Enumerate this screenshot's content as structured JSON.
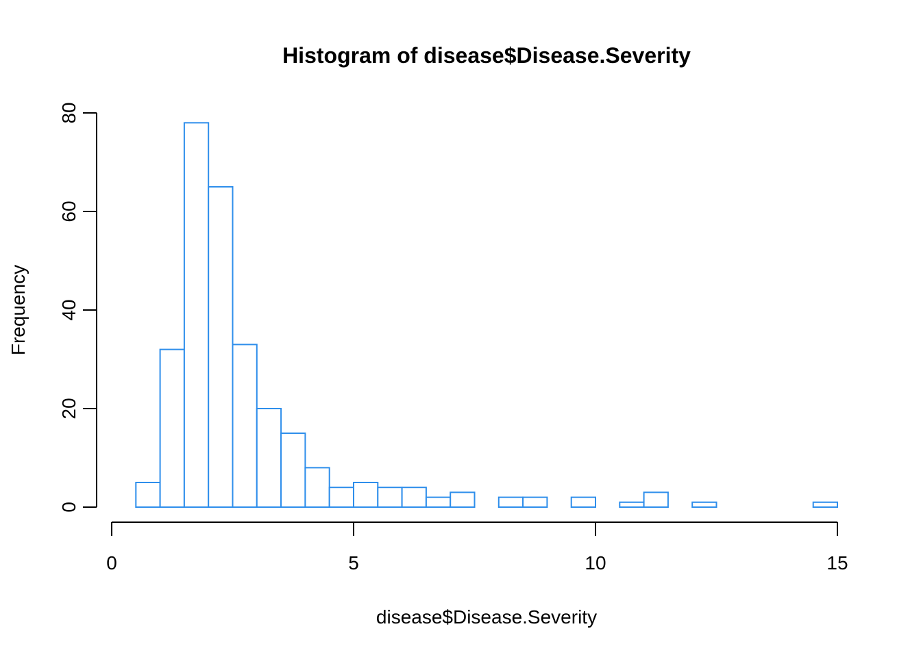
{
  "chart_data": {
    "type": "bar",
    "title": "Histogram of disease$Disease.Severity",
    "xlabel": "disease$Disease.Severity",
    "ylabel": "Frequency",
    "xlim": [
      0,
      15
    ],
    "ylim": [
      0,
      80
    ],
    "x_ticks": [
      0,
      5,
      10,
      15
    ],
    "y_ticks": [
      0,
      20,
      40,
      60,
      80
    ],
    "bin_width": 0.5,
    "bins": [
      {
        "start": 0.5,
        "end": 1.0,
        "count": 5
      },
      {
        "start": 1.0,
        "end": 1.5,
        "count": 32
      },
      {
        "start": 1.5,
        "end": 2.0,
        "count": 78
      },
      {
        "start": 2.0,
        "end": 2.5,
        "count": 65
      },
      {
        "start": 2.5,
        "end": 3.0,
        "count": 33
      },
      {
        "start": 3.0,
        "end": 3.5,
        "count": 20
      },
      {
        "start": 3.5,
        "end": 4.0,
        "count": 15
      },
      {
        "start": 4.0,
        "end": 4.5,
        "count": 8
      },
      {
        "start": 4.5,
        "end": 5.0,
        "count": 4
      },
      {
        "start": 5.0,
        "end": 5.5,
        "count": 5
      },
      {
        "start": 5.5,
        "end": 6.0,
        "count": 4
      },
      {
        "start": 6.0,
        "end": 6.5,
        "count": 4
      },
      {
        "start": 6.5,
        "end": 7.0,
        "count": 2
      },
      {
        "start": 7.0,
        "end": 7.5,
        "count": 3
      },
      {
        "start": 7.5,
        "end": 8.0,
        "count": 0
      },
      {
        "start": 8.0,
        "end": 8.5,
        "count": 2
      },
      {
        "start": 8.5,
        "end": 9.0,
        "count": 2
      },
      {
        "start": 9.0,
        "end": 9.5,
        "count": 0
      },
      {
        "start": 9.5,
        "end": 10.0,
        "count": 2
      },
      {
        "start": 10.0,
        "end": 10.5,
        "count": 0
      },
      {
        "start": 10.5,
        "end": 11.0,
        "count": 1
      },
      {
        "start": 11.0,
        "end": 11.5,
        "count": 3
      },
      {
        "start": 11.5,
        "end": 12.0,
        "count": 0
      },
      {
        "start": 12.0,
        "end": 12.5,
        "count": 1
      },
      {
        "start": 12.5,
        "end": 13.0,
        "count": 0
      },
      {
        "start": 13.0,
        "end": 13.5,
        "count": 0
      },
      {
        "start": 13.5,
        "end": 14.0,
        "count": 0
      },
      {
        "start": 14.0,
        "end": 14.5,
        "count": 0
      },
      {
        "start": 14.5,
        "end": 15.0,
        "count": 1
      }
    ],
    "bar_border_color": "#2E8EEB",
    "bar_fill_color": "#FFFFFF",
    "grid": false,
    "legend": "none"
  }
}
